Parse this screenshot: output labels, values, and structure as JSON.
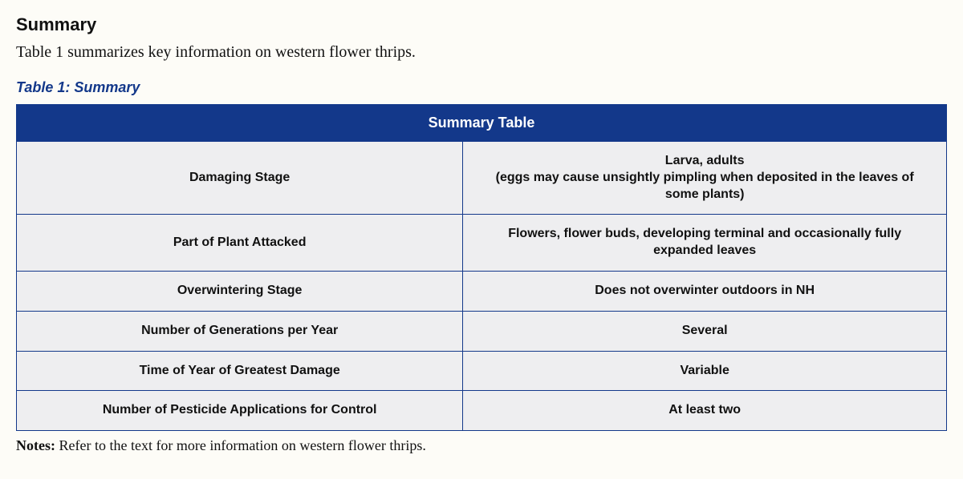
{
  "heading": "Summary",
  "intro": "Table 1 summarizes key information on western flower thrips.",
  "caption": "Table 1: Summary",
  "table": {
    "header": "Summary Table",
    "header_bg": "#13388a",
    "header_fg": "#ffffff",
    "cell_bg": "#eeeef0",
    "border_color": "#13388a",
    "font_family": "Arial, Helvetica, sans-serif",
    "font_weight": "bold",
    "font_size_pt": 12,
    "col_widths": [
      "48%",
      "52%"
    ],
    "rows": [
      {
        "label": "Damaging Stage",
        "value": "Larva, adults\n(eggs may cause unsightly pimpling when deposited in the leaves of some plants)"
      },
      {
        "label": "Part of Plant Attacked",
        "value": "Flowers, flower buds, developing terminal and occasionally fully expanded leaves"
      },
      {
        "label": "Overwintering Stage",
        "value": "Does not overwinter outdoors in NH"
      },
      {
        "label": "Number of Generations per Year",
        "value": "Several"
      },
      {
        "label": "Time of Year of Greatest Damage",
        "value": "Variable"
      },
      {
        "label": "Number of Pesticide Applications for Control",
        "value": "At least two"
      }
    ]
  },
  "notes_label": "Notes:",
  "notes_text": " Refer to the text for more information on western flower thrips."
}
